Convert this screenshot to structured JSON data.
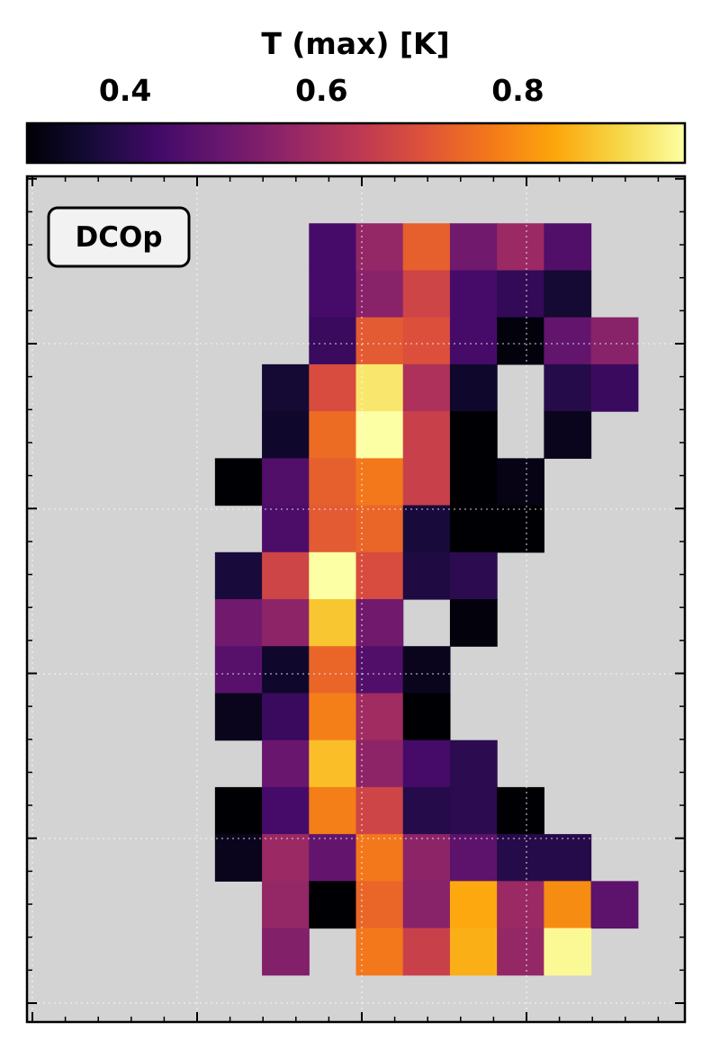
{
  "chart_data": {
    "type": "heatmap",
    "label": "DCOp",
    "colorbar": {
      "title": "T (max) [K]",
      "colormap": "inferno",
      "vmin": 0.3,
      "vmax": 0.97,
      "ticks": [
        0.4,
        0.6,
        0.8
      ],
      "tick_labels": [
        "0.4",
        "0.6",
        "0.8"
      ],
      "position": "top"
    },
    "grid": true,
    "background_color": "#d3d3d3",
    "n_cols": 14,
    "n_rows": 18,
    "null_marker": "none = masked (no data)",
    "rows": [
      [
        null,
        null,
        null,
        null,
        null,
        null,
        0.44,
        0.57,
        0.73,
        0.51,
        0.58,
        0.46,
        null,
        null
      ],
      [
        null,
        null,
        null,
        null,
        null,
        null,
        0.44,
        0.55,
        0.67,
        0.44,
        0.41,
        0.36,
        null,
        null
      ],
      [
        null,
        null,
        null,
        null,
        null,
        null,
        0.42,
        0.72,
        0.7,
        0.44,
        0.31,
        0.49,
        0.55,
        null
      ],
      [
        null,
        null,
        null,
        null,
        null,
        0.36,
        0.69,
        0.93,
        0.61,
        0.35,
        null,
        0.39,
        0.42,
        null
      ],
      [
        null,
        null,
        null,
        null,
        null,
        0.35,
        0.75,
        0.97,
        0.66,
        0.3,
        null,
        0.33,
        null,
        null
      ],
      [
        null,
        null,
        null,
        null,
        0.3,
        0.46,
        0.73,
        0.77,
        0.66,
        0.3,
        0.32,
        null,
        null,
        null
      ],
      [
        null,
        null,
        null,
        null,
        null,
        0.45,
        0.72,
        0.74,
        0.37,
        0.3,
        0.3,
        null,
        null,
        null
      ],
      [
        null,
        null,
        null,
        null,
        0.37,
        0.67,
        0.97,
        0.69,
        0.38,
        0.4,
        null,
        null,
        null,
        null
      ],
      [
        null,
        null,
        null,
        null,
        0.51,
        0.56,
        0.88,
        0.51,
        null,
        0.31,
        null,
        null,
        null,
        null
      ],
      [
        null,
        null,
        null,
        null,
        0.47,
        0.35,
        0.74,
        0.46,
        0.33,
        null,
        null,
        null,
        null,
        null
      ],
      [
        null,
        null,
        null,
        null,
        0.33,
        0.42,
        0.78,
        0.59,
        0.3,
        null,
        null,
        null,
        null,
        null
      ],
      [
        null,
        null,
        null,
        null,
        null,
        0.5,
        0.87,
        0.56,
        0.44,
        0.4,
        null,
        null,
        null,
        null
      ],
      [
        null,
        null,
        null,
        null,
        0.3,
        0.44,
        0.78,
        0.67,
        0.39,
        0.4,
        0.3,
        null,
        null,
        null
      ],
      [
        null,
        null,
        null,
        null,
        0.33,
        0.58,
        0.49,
        0.77,
        0.56,
        0.48,
        0.39,
        0.39,
        null,
        null
      ],
      [
        null,
        null,
        null,
        null,
        null,
        0.57,
        0.3,
        0.74,
        0.55,
        0.84,
        0.58,
        0.8,
        0.48,
        null
      ],
      [
        null,
        null,
        null,
        null,
        null,
        0.54,
        null,
        0.77,
        0.66,
        0.85,
        0.57,
        0.96,
        null,
        null
      ]
    ],
    "row_offset": 1
  }
}
